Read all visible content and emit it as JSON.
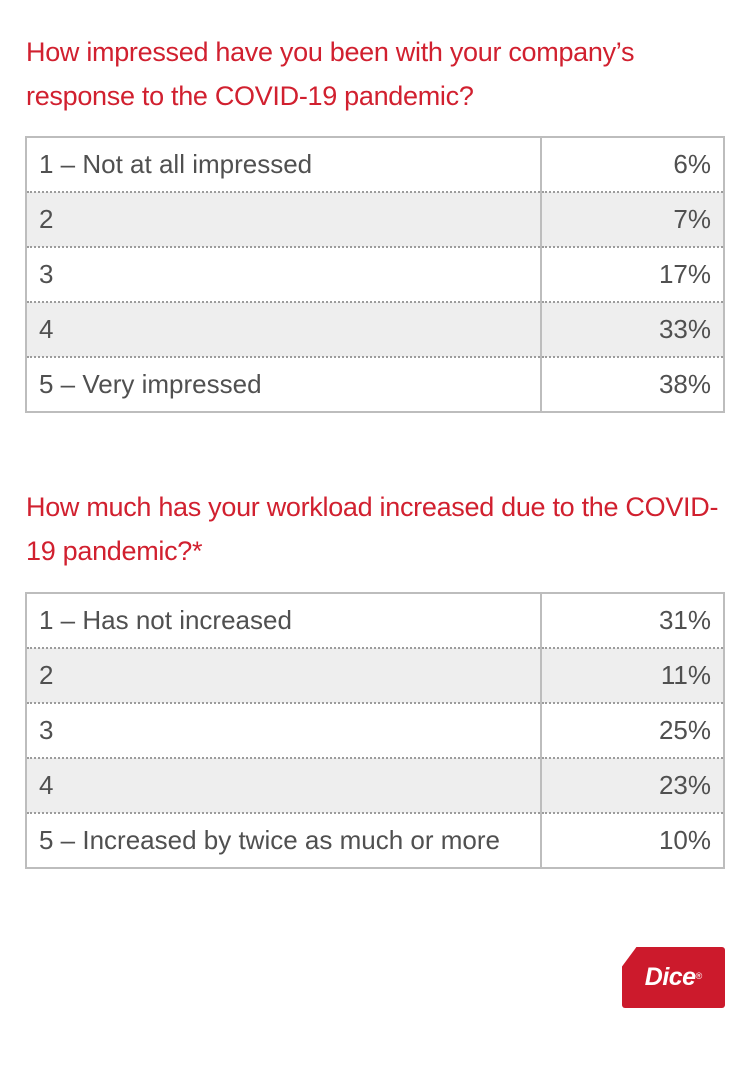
{
  "chart_data": [
    {
      "type": "table",
      "title": "How impressed have you been with your company’s response to the COVID-19 pandemic?",
      "rows": [
        {
          "label": "1 – Not at all impressed",
          "value": "6%"
        },
        {
          "label": "2",
          "value": "7%"
        },
        {
          "label": "3",
          "value": "17%"
        },
        {
          "label": "4",
          "value": "33%"
        },
        {
          "label": "5 – Very impressed",
          "value": "38%"
        }
      ]
    },
    {
      "type": "table",
      "title": "How much has your workload increased due to the COVID-19 pandemic?*",
      "rows": [
        {
          "label": "1 – Has not increased",
          "value": "31%"
        },
        {
          "label": "2",
          "value": "11%"
        },
        {
          "label": "3",
          "value": "25%"
        },
        {
          "label": "4",
          "value": "23%"
        },
        {
          "label": "5 – Increased by twice as much or more",
          "value": "10%"
        }
      ]
    }
  ],
  "logo": {
    "text": "Dice",
    "mark": "®",
    "color": "#cc1a2c"
  },
  "colors": {
    "accent": "#d1202f",
    "text": "#505050",
    "row_alt": "#eeeeee"
  }
}
